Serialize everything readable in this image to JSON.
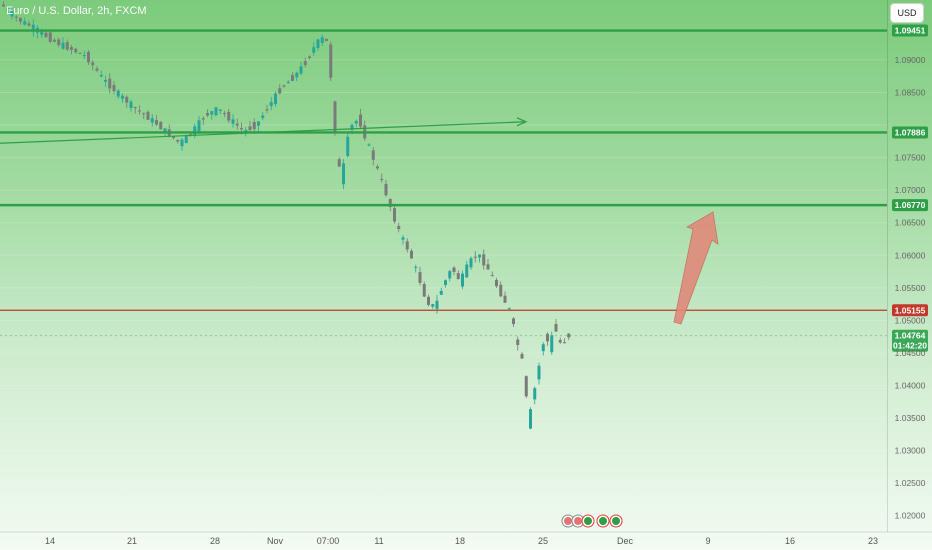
{
  "header": {
    "title": "Euro / U.S. Dollar, 2h, FXCM",
    "currency": "USD"
  },
  "colors": {
    "up": "#26a69a",
    "down": "#7a7a7a",
    "level": "#2e9e47",
    "resistance": "#c0392b",
    "arrow": "#e08a7a"
  },
  "chart_data": {
    "type": "candlestick",
    "ylim": [
      1.0175,
      1.0992
    ],
    "price_ticks": [
      "1.09000",
      "1.08500",
      "1.08000",
      "1.07500",
      "1.07000",
      "1.06500",
      "1.06000",
      "1.05500",
      "1.05000",
      "1.04500",
      "1.04000",
      "1.03500",
      "1.03000",
      "1.02500",
      "1.02000"
    ],
    "price_tick_values": [
      1.09,
      1.085,
      1.08,
      1.075,
      1.07,
      1.065,
      1.06,
      1.055,
      1.05,
      1.045,
      1.04,
      1.035,
      1.03,
      1.025,
      1.02
    ],
    "time_ticks": [
      "14",
      "21",
      "28",
      "Nov",
      "07:00",
      "11",
      "18",
      "25",
      "Dec",
      "9",
      "16",
      "23"
    ],
    "levels": [
      {
        "value": 1.09451,
        "label": "1.09451",
        "kind": "support"
      },
      {
        "value": 1.07886,
        "label": "1.07886",
        "kind": "support"
      },
      {
        "value": 1.0677,
        "label": "1.06770",
        "kind": "support"
      },
      {
        "value": 1.05155,
        "label": "1.05155",
        "kind": "resistance"
      }
    ],
    "current": {
      "price": "1.04764",
      "value": 1.04764,
      "countdown": "01:42:20"
    },
    "path": [
      [
        0,
        1.0985
      ],
      [
        4,
        1.0962
      ],
      [
        8,
        1.0948
      ],
      [
        12,
        1.093
      ],
      [
        16,
        1.0918
      ],
      [
        20,
        1.0905
      ],
      [
        24,
        1.087
      ],
      [
        28,
        1.0845
      ],
      [
        32,
        1.0823
      ],
      [
        36,
        1.0805
      ],
      [
        39,
        1.0788
      ],
      [
        42,
        1.0772
      ],
      [
        45,
        1.079
      ],
      [
        48,
        1.0815
      ],
      [
        51,
        1.0825
      ],
      [
        54,
        1.0808
      ],
      [
        57,
        1.079
      ],
      [
        60,
        1.08
      ],
      [
        63,
        1.083
      ],
      [
        66,
        1.0858
      ],
      [
        69,
        1.0875
      ],
      [
        72,
        1.09
      ],
      [
        74,
        1.0925
      ],
      [
        76,
        1.0935
      ],
      [
        77,
        1.092
      ],
      [
        78,
        1.083
      ],
      [
        79,
        1.0752
      ],
      [
        80,
        1.0715
      ],
      [
        81,
        1.076
      ],
      [
        82,
        1.0795
      ],
      [
        84,
        1.081
      ],
      [
        86,
        1.0775
      ],
      [
        88,
        1.074
      ],
      [
        90,
        1.0705
      ],
      [
        92,
        1.0665
      ],
      [
        94,
        1.063
      ],
      [
        96,
        1.0605
      ],
      [
        98,
        1.057
      ],
      [
        100,
        1.053
      ],
      [
        102,
        1.052
      ],
      [
        104,
        1.0555
      ],
      [
        106,
        1.058
      ],
      [
        108,
        1.056
      ],
      [
        110,
        1.0588
      ],
      [
        112,
        1.0602
      ],
      [
        114,
        1.0585
      ],
      [
        116,
        1.056
      ],
      [
        118,
        1.0535
      ],
      [
        120,
        1.051
      ],
      [
        121,
        1.047
      ],
      [
        122,
        1.0455
      ],
      [
        123,
        1.042
      ],
      [
        124,
        1.034
      ],
      [
        125,
        1.038
      ],
      [
        126,
        1.041
      ],
      [
        127,
        1.045
      ],
      [
        128,
        1.048
      ],
      [
        129,
        1.0455
      ],
      [
        130,
        1.0495
      ],
      [
        131,
        1.047
      ],
      [
        132,
        1.0462
      ],
      [
        133,
        1.0476
      ]
    ],
    "markers": [
      "earnings-icon",
      "earnings-icon",
      "news-icon",
      "news-icon",
      "news-icon"
    ]
  }
}
